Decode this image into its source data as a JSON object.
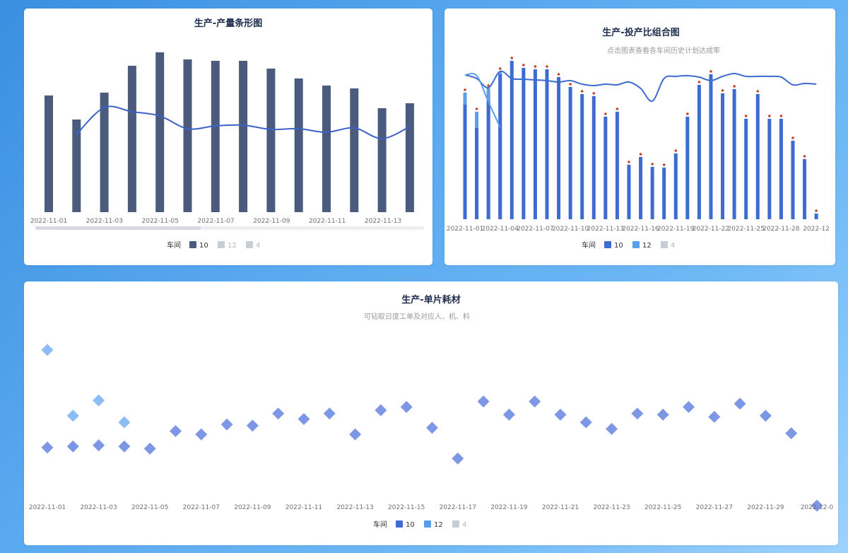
{
  "colors": {
    "bar_dark": "#4a5b7d",
    "line_blue": "#3b63c8",
    "series10": "#3d6bd1",
    "series12": "#5a9eea",
    "series4": "#c8ccd3",
    "marker_red": "#c2452d",
    "diamond10": "#7d97e6",
    "diamond12": "#8bbcf5"
  },
  "chart_data": [
    {
      "id": "output-bar",
      "type": "bar",
      "title": "生产-产量条形图",
      "xtick_labels": [
        "2022-11-01",
        "2022-11-03",
        "2022-11-05",
        "2022-11-07",
        "2022-11-09",
        "2022-11-11",
        "2022-11-13"
      ],
      "legend": {
        "label": "车间",
        "items": [
          "10",
          "12",
          "4"
        ],
        "active": [
          true,
          false,
          false
        ]
      },
      "series": [
        {
          "name": "10",
          "kind": "bar",
          "values": [
            165,
            131,
            169,
            207,
            226,
            216,
            214,
            214,
            203,
            189,
            179,
            175,
            147,
            154
          ]
        },
        {
          "name": "10",
          "kind": "line",
          "values": [
            null,
            110,
            148,
            142,
            136,
            118,
            122,
            123,
            117,
            118,
            113,
            119,
            104,
            121
          ]
        }
      ],
      "ylim": [
        0,
        230
      ],
      "grid": false,
      "legend_position": "bottom"
    },
    {
      "id": "input-output-combo",
      "type": "bar",
      "title": "生产-投产比组合图",
      "subtitle": "点击图表查看各车间历史计划达成率",
      "xtick_labels": [
        "2022-11-01",
        "2022-11-04",
        "2022-11-07",
        "2022-11-10",
        "2022-11-13",
        "2022-11-16",
        "2022-11-19",
        "2022-11-22",
        "2022-11-25",
        "2022-11-28",
        "2022-12"
      ],
      "legend": {
        "label": "车间",
        "items": [
          "10",
          "12",
          "4"
        ],
        "active": [
          true,
          true,
          false
        ]
      },
      "series": [
        {
          "name": "10",
          "kind": "bar",
          "values": [
            162,
            129,
            167,
            205,
            224,
            214,
            212,
            212,
            201,
            187,
            177,
            174,
            145,
            152,
            77,
            88,
            74,
            73,
            93,
            145,
            190,
            205,
            178,
            184,
            142,
            177,
            142,
            142,
            111,
            85,
            8
          ]
        },
        {
          "name": "12",
          "kind": "bar",
          "values": [
            179,
            152,
            185,
            209,
            null,
            null,
            null,
            null,
            null,
            null,
            null,
            null,
            null,
            null,
            null,
            null,
            null,
            null,
            null,
            null,
            null,
            null,
            null,
            null,
            null,
            null,
            null,
            null,
            null,
            null,
            null
          ]
        },
        {
          "name": "10",
          "kind": "line",
          "values": [
            204,
            199,
            186,
            209,
            199,
            198,
            197,
            196,
            194,
            196,
            191,
            189,
            191,
            190,
            194,
            185,
            167,
            199,
            202,
            203,
            201,
            196,
            202,
            206,
            202,
            202,
            202,
            201,
            190,
            192,
            191
          ]
        },
        {
          "name": "12",
          "kind": "line",
          "values": [
            204,
            203,
            166,
            130,
            null,
            null,
            null,
            null,
            null,
            null,
            null,
            null,
            null,
            null,
            null,
            null,
            null,
            null,
            null,
            null,
            null,
            null,
            null,
            null,
            null,
            null,
            null,
            null,
            null,
            null,
            null
          ]
        }
      ],
      "ylim": [
        0,
        230
      ],
      "grid": false,
      "legend_position": "bottom"
    },
    {
      "id": "unit-consumption",
      "type": "scatter",
      "title": "生产-单片耗材",
      "subtitle": "可钻取日度工单及对应人、机、料",
      "xtick_labels": [
        "2022-11-01",
        "2022-11-03",
        "2022-11-05",
        "2022-11-07",
        "2022-11-09",
        "2022-11-11",
        "2022-11-13",
        "2022-11-15",
        "2022-11-17",
        "2022-11-19",
        "2022-11-21",
        "2022-11-23",
        "2022-11-25",
        "2022-11-27",
        "2022-11-29",
        "2022-12-0"
      ],
      "legend": {
        "label": "车间",
        "items": [
          "10",
          "12",
          "4"
        ],
        "active": [
          true,
          true,
          false
        ]
      },
      "series": [
        {
          "name": "10",
          "values": [
            7.3,
            7.4,
            7.5,
            7.4,
            7.2,
            8.8,
            8.5,
            9.4,
            9.3,
            10.4,
            9.9,
            10.4,
            8.5,
            10.7,
            11.0,
            9.1,
            6.3,
            11.5,
            10.3,
            11.5,
            10.3,
            9.6,
            9.0,
            10.4,
            10.3,
            11.0,
            10.1,
            11.3,
            10.2,
            8.6,
            2.0
          ]
        },
        {
          "name": "12",
          "values": [
            16.2,
            10.2,
            11.6,
            9.6,
            null,
            null,
            null,
            null,
            null,
            null,
            null,
            null,
            null,
            null,
            null,
            null,
            null,
            null,
            null,
            null,
            null,
            null,
            null,
            null,
            null,
            null,
            null,
            null,
            null,
            null,
            null
          ]
        }
      ],
      "ylim": [
        0,
        20
      ],
      "grid": false,
      "legend_position": "bottom"
    }
  ]
}
